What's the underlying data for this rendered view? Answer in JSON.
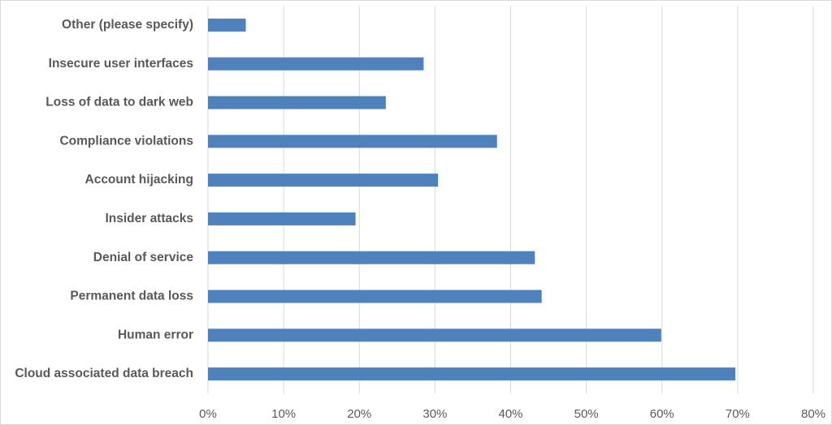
{
  "chart_data": {
    "type": "hbar",
    "categories": [
      "Other (please specify)",
      "Insecure user interfaces",
      "Loss of data to dark web",
      "Compliance violations",
      "Account hijacking",
      "Insider attacks",
      "Denial of service",
      "Permanent data loss",
      "Human error",
      "Cloud associated data breach"
    ],
    "values": [
      5,
      28.5,
      23.5,
      38.2,
      30.4,
      19.5,
      43.2,
      44.1,
      59.9,
      69.7
    ],
    "color": "#4f81bd",
    "xlim": [
      0,
      80
    ],
    "xticks": [
      {
        "value": 0,
        "label": "0%"
      },
      {
        "value": 10,
        "label": "10%"
      },
      {
        "value": 20,
        "label": "20%"
      },
      {
        "value": 30,
        "label": "30%"
      },
      {
        "value": 40,
        "label": "40%"
      },
      {
        "value": 50,
        "label": "50%"
      },
      {
        "value": 60,
        "label": "60%"
      },
      {
        "value": 70,
        "label": "70%"
      },
      {
        "value": 80,
        "label": "80%"
      }
    ],
    "grid": true
  }
}
